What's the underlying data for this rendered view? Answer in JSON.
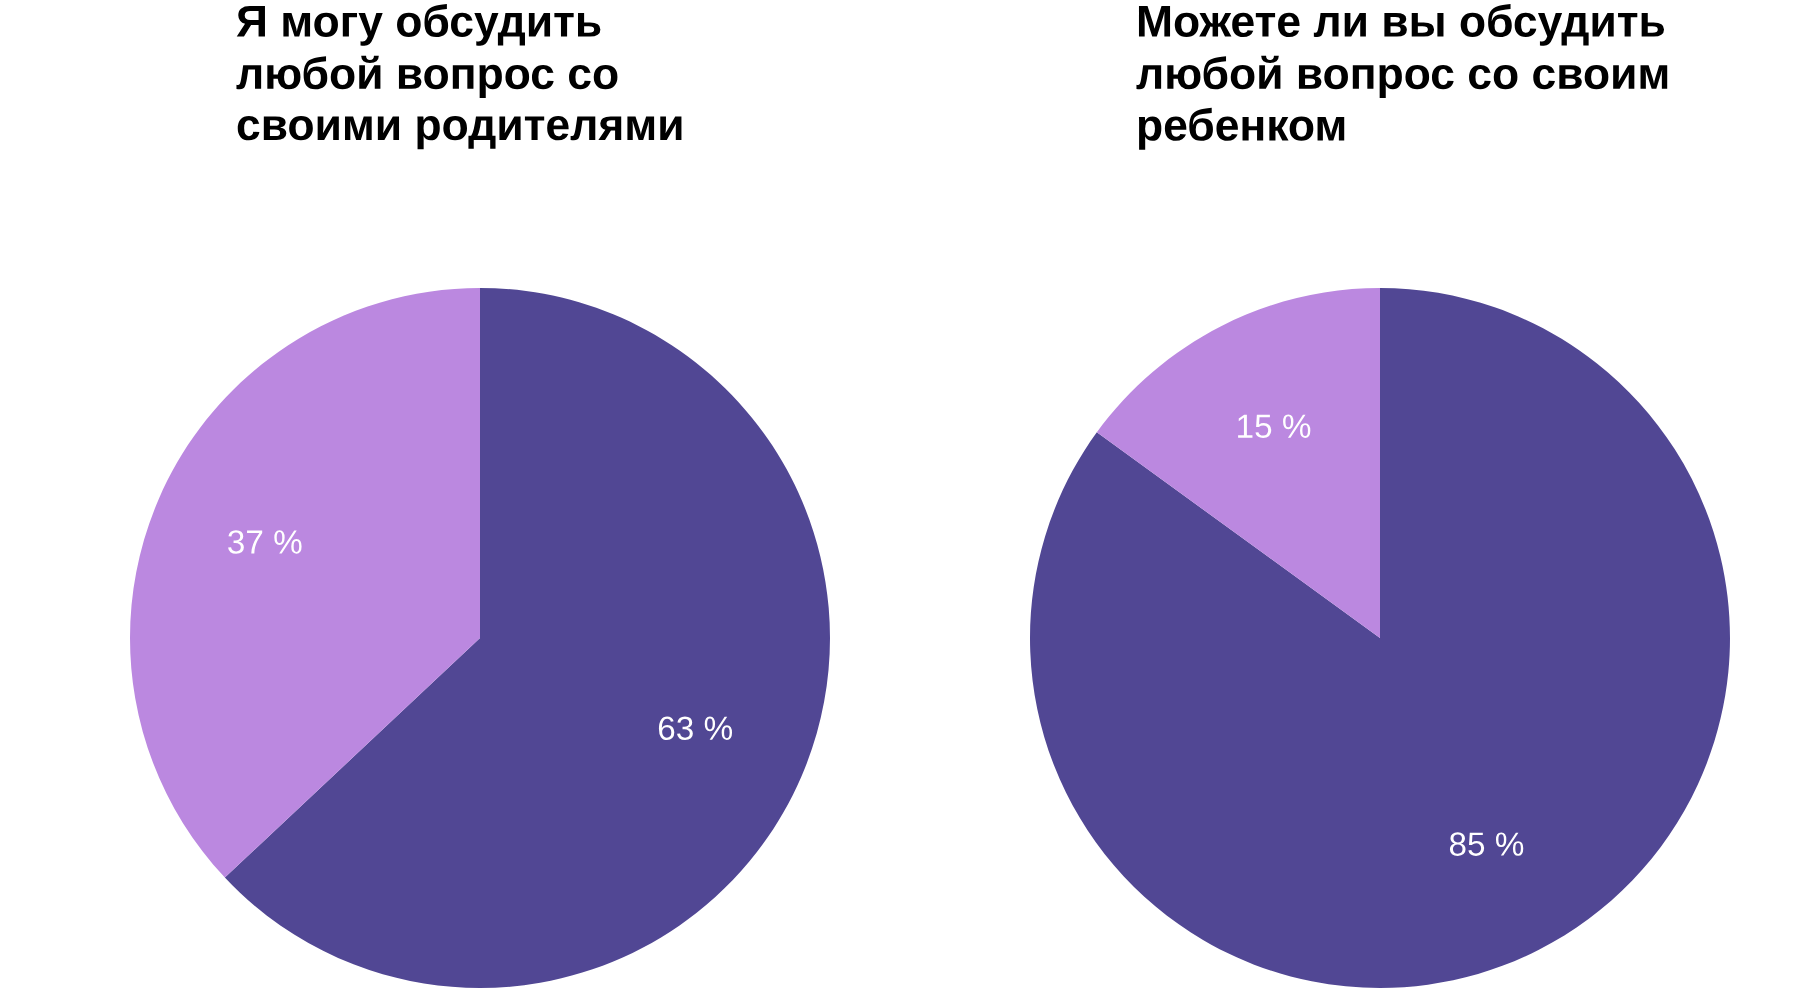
{
  "chart_data": [
    {
      "type": "pie",
      "title": "Я могу обсудить\nлюбой вопрос со\nсвоими родителями",
      "categories": [
        null,
        null
      ],
      "values": [
        63,
        37
      ],
      "colors": [
        "#514794",
        "#bb88e0"
      ],
      "value_labels": [
        "63 %",
        "37 %"
      ]
    },
    {
      "type": "pie",
      "title": "Можете ли вы обсудить\nлюбой вопрос со своим\nребенком",
      "categories": [
        null,
        null
      ],
      "values": [
        85,
        15
      ],
      "colors": [
        "#514794",
        "#bb88e0"
      ],
      "value_labels": [
        "85 %",
        "15 %"
      ]
    }
  ]
}
